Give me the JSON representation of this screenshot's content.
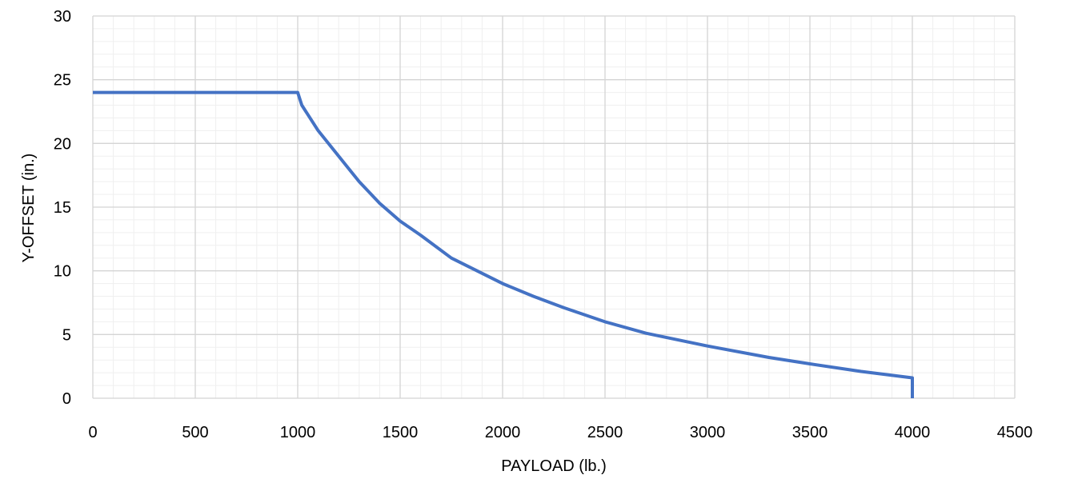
{
  "chart_data": {
    "type": "line",
    "title": "",
    "xlabel": "PAYLOAD (lb.)",
    "ylabel": "Y-OFFSET (in.)",
    "xlim": [
      0,
      4500
    ],
    "ylim": [
      0,
      30
    ],
    "xticks": [
      0,
      500,
      1000,
      1500,
      2000,
      2500,
      3000,
      3500,
      4000,
      4500
    ],
    "yticks": [
      0,
      5,
      10,
      15,
      20,
      25,
      30
    ],
    "x_minor_step": 100,
    "y_minor_step": 1,
    "grid": true,
    "legend": "none",
    "series": [
      {
        "color": "#4472C4",
        "points": [
          [
            0,
            24
          ],
          [
            1000,
            24
          ],
          [
            1020,
            23
          ],
          [
            1100,
            21
          ],
          [
            1250,
            18
          ],
          [
            1300,
            17
          ],
          [
            1400,
            15.3
          ],
          [
            1500,
            13.9
          ],
          [
            1600,
            12.8
          ],
          [
            1750,
            11
          ],
          [
            2000,
            9
          ],
          [
            2150,
            8
          ],
          [
            2300,
            7.1
          ],
          [
            2500,
            6
          ],
          [
            2700,
            5.1
          ],
          [
            3000,
            4.1
          ],
          [
            3300,
            3.2
          ],
          [
            3500,
            2.7
          ],
          [
            3750,
            2.1
          ],
          [
            4000,
            1.6
          ],
          [
            4000,
            0
          ]
        ]
      }
    ]
  }
}
